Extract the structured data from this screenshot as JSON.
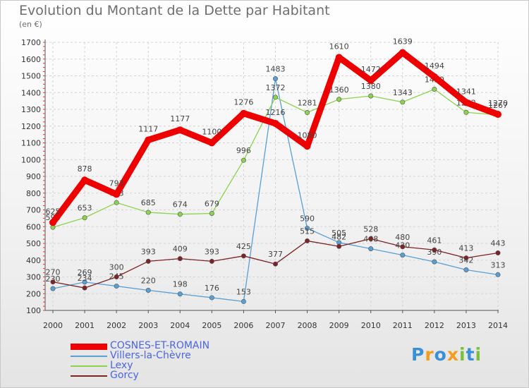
{
  "title": "Evolution du Montant de la Dette par Habitant",
  "subtitle": "(en €)",
  "logo": {
    "text": "Proxiti",
    "letters": [
      {
        "ch": "P",
        "color": "#3b8fd6"
      },
      {
        "ch": "r",
        "color": "#f39c1e"
      },
      {
        "ch": "o",
        "color": "#3b8fd6"
      },
      {
        "ch": "x",
        "color": "#f39c1e"
      },
      {
        "ch": "i",
        "color": "#7cbf3a"
      },
      {
        "ch": "t",
        "color": "#3b8fd6"
      },
      {
        "ch": "i",
        "color": "#7cbf3a"
      }
    ]
  },
  "chart_data": {
    "type": "line",
    "title": "Evolution du Montant de la Dette par Habitant",
    "subtitle": "(en €)",
    "ylim": [
      100,
      1700
    ],
    "yticks": [
      100,
      200,
      300,
      400,
      500,
      600,
      700,
      800,
      900,
      1000,
      1100,
      1200,
      1300,
      1400,
      1500,
      1600,
      1700
    ],
    "x": [
      "2000",
      "2001",
      "2002",
      "2003",
      "2004",
      "2005",
      "2006",
      "2007",
      "2008",
      "2009",
      "2010",
      "2011",
      "2012",
      "2013",
      "2014"
    ],
    "grid": true,
    "legend_position": "bottom-left",
    "series": [
      {
        "name": "COSNES-ET-ROMAIN",
        "color": "#ee0000",
        "values": [
          625,
          878,
          793,
          1117,
          1177,
          1100,
          1276,
          1216,
          1080,
          1610,
          1472,
          1639,
          1494,
          1341,
          1270
        ]
      },
      {
        "name": "Villers-la-Chèvre",
        "color": "#5a9fd4",
        "values": [
          230,
          269,
          245,
          220,
          198,
          176,
          153,
          1483,
          590,
          505,
          468,
          430,
          390,
          342,
          313
        ]
      },
      {
        "name": "Lexy",
        "color": "#8cd24e",
        "values": [
          596,
          653,
          743,
          685,
          674,
          679,
          996,
          1372,
          1281,
          1360,
          1380,
          1343,
          1420,
          1282,
          1267
        ]
      },
      {
        "name": "Gorcy",
        "color": "#7a2426",
        "values": [
          270,
          234,
          300,
          393,
          409,
          393,
          425,
          377,
          515,
          482,
          528,
          480,
          461,
          413,
          443
        ]
      }
    ]
  }
}
